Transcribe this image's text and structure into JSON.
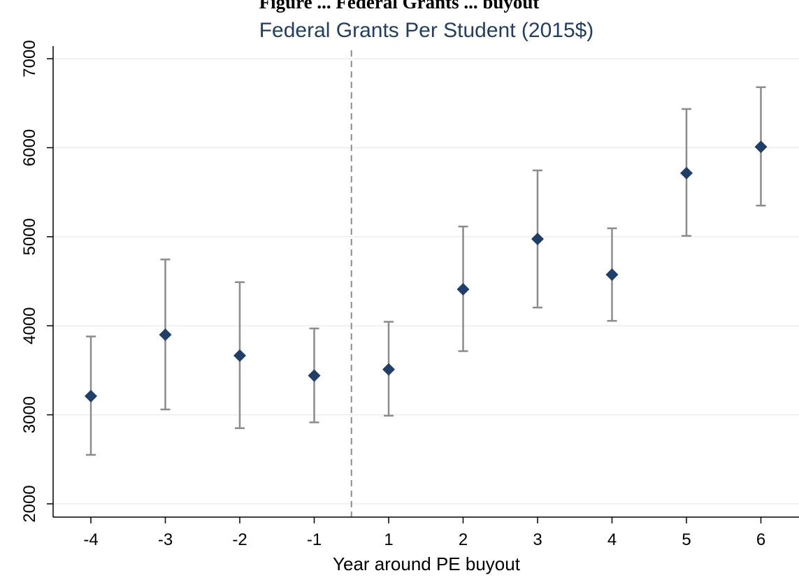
{
  "chart_data": {
    "type": "scatter",
    "top_title": "Figure ... Federal Grants ... buyout",
    "title": "Federal Grants Per Student (2015$)",
    "xlabel": "Year around PE buyout",
    "ylabel": "",
    "categories": [
      "-4",
      "-3",
      "-2",
      "-1",
      "1",
      "2",
      "3",
      "4",
      "5",
      "6"
    ],
    "ylim": [
      2000,
      7000
    ],
    "yticks": [
      2000,
      3000,
      4000,
      5000,
      6000,
      7000
    ],
    "grid": true,
    "event_line_between": [
      "-1",
      "1"
    ],
    "series": [
      {
        "values": [
          3210,
          3900,
          3665,
          3440,
          3510,
          4410,
          4975,
          4575,
          5715,
          6010
        ],
        "ci_low": [
          2550,
          3060,
          2850,
          2915,
          2990,
          3715,
          4205,
          4055,
          5010,
          5350
        ],
        "ci_high": [
          3880,
          4745,
          4490,
          3970,
          4045,
          5115,
          5745,
          5095,
          6435,
          6680
        ]
      }
    ],
    "colors": {
      "marker": "#1f3f6a",
      "ci": "#8c8c8c",
      "grid": "#e8eef2",
      "event_line": "#8c8c8c"
    }
  }
}
